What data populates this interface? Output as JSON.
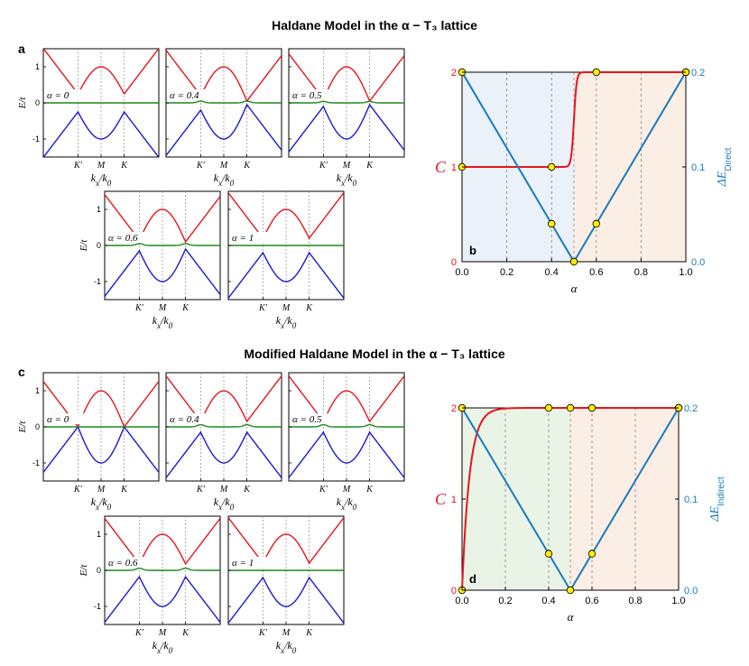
{
  "titles": {
    "top": "Haldane Model in the α − T₃ lattice",
    "bottom": "Modified Haldane Model in the α − T₃ lattice"
  },
  "panel_letters": {
    "a": "a",
    "b": "b",
    "c": "c",
    "d": "d"
  },
  "colors": {
    "upper_band": "#e8141c",
    "flat_band": "#1b8a1b",
    "lower_band": "#1919d6",
    "chern": "#e8141c",
    "gap": "#1a7abf",
    "marker_fill": "#ffee00",
    "region_low_b": "#eaf1f8",
    "region_high": "#fbeee4",
    "region_low_d": "#eaf4e6"
  },
  "band_axis": {
    "ylabel": "E/t",
    "xlabel": "k_x/k_0",
    "yticks": [
      "1",
      "0",
      "-1"
    ],
    "xticks": [
      "K′",
      "M",
      "K"
    ]
  },
  "chart_data": [
    {
      "id": "a",
      "type": "line",
      "description_of_panels": "band structures",
      "panels": [
        {
          "alpha_label": "α = 0",
          "gapK1": 0.25,
          "gapK2": 0.25,
          "flat_bump": 0.0
        },
        {
          "alpha_label": "α = 0.4",
          "gapK1": 0.2,
          "gapK2": 0.05,
          "flat_bump": 0.05
        },
        {
          "alpha_label": "α = 0.5",
          "gapK1": 0.1,
          "gapK2": 0.05,
          "flat_bump": 0.04
        },
        {
          "alpha_label": "α = 0.6",
          "gapK1": 0.15,
          "gapK2": 0.1,
          "flat_bump": 0.05
        },
        {
          "alpha_label": "α = 1",
          "gapK1": 0.2,
          "gapK2": 0.2,
          "flat_bump": 0.0
        }
      ]
    },
    {
      "id": "b",
      "type": "line",
      "xlabel": "α",
      "ylabel_left": "C",
      "ylabel_right": "ΔE",
      "ylabel_right_sub": "Direct",
      "xlim": [
        0,
        1
      ],
      "ylim_left": [
        0,
        2
      ],
      "ylim_right": [
        0,
        0.2
      ],
      "xticks": [
        "0.0",
        "0.2",
        "0.4",
        "0.6",
        "0.8",
        "1.0"
      ],
      "yticks_left": [
        "0",
        "1",
        "2"
      ],
      "yticks_right": [
        "0.0",
        "0.1",
        "0.2"
      ],
      "chern_points": [
        [
          0,
          1
        ],
        [
          0.4,
          1
        ],
        [
          0.6,
          2
        ],
        [
          1.0,
          2
        ]
      ],
      "gap_points": [
        [
          0,
          0.2
        ],
        [
          0.4,
          0.04
        ],
        [
          0.5,
          0.0
        ],
        [
          0.6,
          0.04
        ],
        [
          1.0,
          0.2
        ]
      ],
      "transition_alpha": 0.5
    },
    {
      "id": "c",
      "type": "line",
      "description_of_panels": "band structures",
      "panels": [
        {
          "alpha_label": "α = 0",
          "gapK1": 0.0,
          "gapK2": 0.0,
          "flat_bump": 0.0
        },
        {
          "alpha_label": "α = 0.4",
          "gapK1": 0.15,
          "gapK2": 0.15,
          "flat_bump": 0.06
        },
        {
          "alpha_label": "α = 0.5",
          "gapK1": 0.15,
          "gapK2": 0.15,
          "flat_bump": 0.06
        },
        {
          "alpha_label": "α = 0.6",
          "gapK1": 0.18,
          "gapK2": 0.18,
          "flat_bump": 0.06
        },
        {
          "alpha_label": "α = 1",
          "gapK1": 0.2,
          "gapK2": 0.2,
          "flat_bump": 0.0
        }
      ]
    },
    {
      "id": "d",
      "type": "line",
      "xlabel": "α",
      "ylabel_left": "C",
      "ylabel_right": "ΔE",
      "ylabel_right_sub": "Indirect",
      "xlim": [
        0,
        1
      ],
      "ylim_left": [
        0,
        2
      ],
      "ylim_right": [
        0,
        0.2
      ],
      "xticks": [
        "0.0",
        "0.2",
        "0.4",
        "0.6",
        "0.8",
        "1.0"
      ],
      "yticks_left": [
        "0",
        "1",
        "2"
      ],
      "yticks_right": [
        "0.0",
        "0.1",
        "0.2"
      ],
      "chern_points": [
        [
          0,
          0
        ],
        [
          0.4,
          2
        ],
        [
          0.5,
          2
        ],
        [
          0.6,
          2
        ],
        [
          1.0,
          2
        ]
      ],
      "gap_points": [
        [
          0,
          0.2
        ],
        [
          0.4,
          0.04
        ],
        [
          0.5,
          0.0
        ],
        [
          0.6,
          0.04
        ],
        [
          1.0,
          0.2
        ]
      ],
      "transition_alpha": 0.5
    }
  ]
}
